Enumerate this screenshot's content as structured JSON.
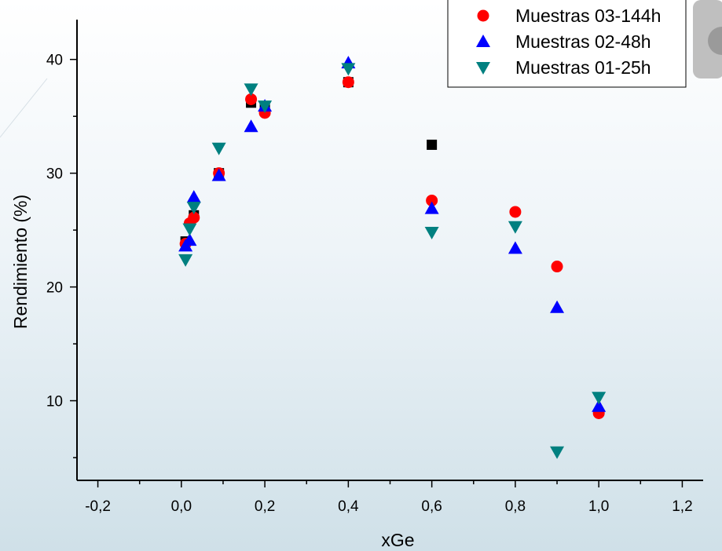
{
  "chart_data": {
    "type": "scatter",
    "title": "",
    "xlabel": "xGe",
    "ylabel": "Rendimiento (%)",
    "xlim": [
      -0.25,
      1.25
    ],
    "ylim": [
      3,
      43.5
    ],
    "x_major_ticks": [
      -0.2,
      0.0,
      0.2,
      0.4,
      0.6,
      0.8,
      1.0,
      1.2
    ],
    "x_tick_labels": [
      "-0,2",
      "0,0",
      "0,2",
      "0,4",
      "0,6",
      "0,8",
      "1,0",
      "1,2"
    ],
    "x_minor_ticks": [
      -0.1,
      0.1,
      0.3,
      0.5,
      0.7,
      0.9,
      1.1
    ],
    "y_major_ticks": [
      10,
      20,
      30,
      40
    ],
    "y_tick_labels": [
      "10",
      "20",
      "30",
      "40"
    ],
    "y_minor_ticks": [
      5,
      15,
      25,
      35
    ],
    "grid": false,
    "legend_position": "top-right",
    "series": [
      {
        "marker": "square",
        "color": "#000000",
        "in_legend": false,
        "points": [
          [
            0.01,
            24.0
          ],
          [
            0.03,
            26.3
          ],
          [
            0.09,
            30.0
          ],
          [
            0.167,
            36.2
          ],
          [
            0.2,
            35.7
          ],
          [
            0.4,
            38.0
          ],
          [
            0.6,
            32.5
          ]
        ]
      },
      {
        "name": "Muestras 03-144h",
        "marker": "circle",
        "color": "#ff0000",
        "in_legend": true,
        "points": [
          [
            0.01,
            23.8
          ],
          [
            0.02,
            25.6
          ],
          [
            0.03,
            26.1
          ],
          [
            0.09,
            30.0
          ],
          [
            0.167,
            36.5
          ],
          [
            0.2,
            35.3
          ],
          [
            0.4,
            38.0
          ],
          [
            0.6,
            27.6
          ],
          [
            0.8,
            26.6
          ],
          [
            0.9,
            21.8
          ],
          [
            1.0,
            8.9
          ]
        ]
      },
      {
        "name": "Muestras 02-48h",
        "marker": "triangle-up",
        "color": "#0000ff",
        "in_legend": true,
        "points": [
          [
            0.01,
            23.6
          ],
          [
            0.02,
            24.1
          ],
          [
            0.03,
            27.9
          ],
          [
            0.09,
            29.8
          ],
          [
            0.167,
            34.1
          ],
          [
            0.2,
            35.9
          ],
          [
            0.4,
            39.7
          ],
          [
            0.6,
            26.9
          ],
          [
            0.8,
            23.4
          ],
          [
            0.9,
            18.2
          ],
          [
            1.0,
            9.5
          ]
        ]
      },
      {
        "name": "Muestras 01-25h",
        "marker": "triangle-down",
        "color": "#008080",
        "in_legend": true,
        "points": [
          [
            0.01,
            22.4
          ],
          [
            0.02,
            25.1
          ],
          [
            0.03,
            27.0
          ],
          [
            0.09,
            32.2
          ],
          [
            0.167,
            37.4
          ],
          [
            0.2,
            35.9
          ],
          [
            0.4,
            39.2
          ],
          [
            0.6,
            24.8
          ],
          [
            0.8,
            25.3
          ],
          [
            0.9,
            5.5
          ],
          [
            1.0,
            10.3
          ]
        ]
      }
    ]
  }
}
